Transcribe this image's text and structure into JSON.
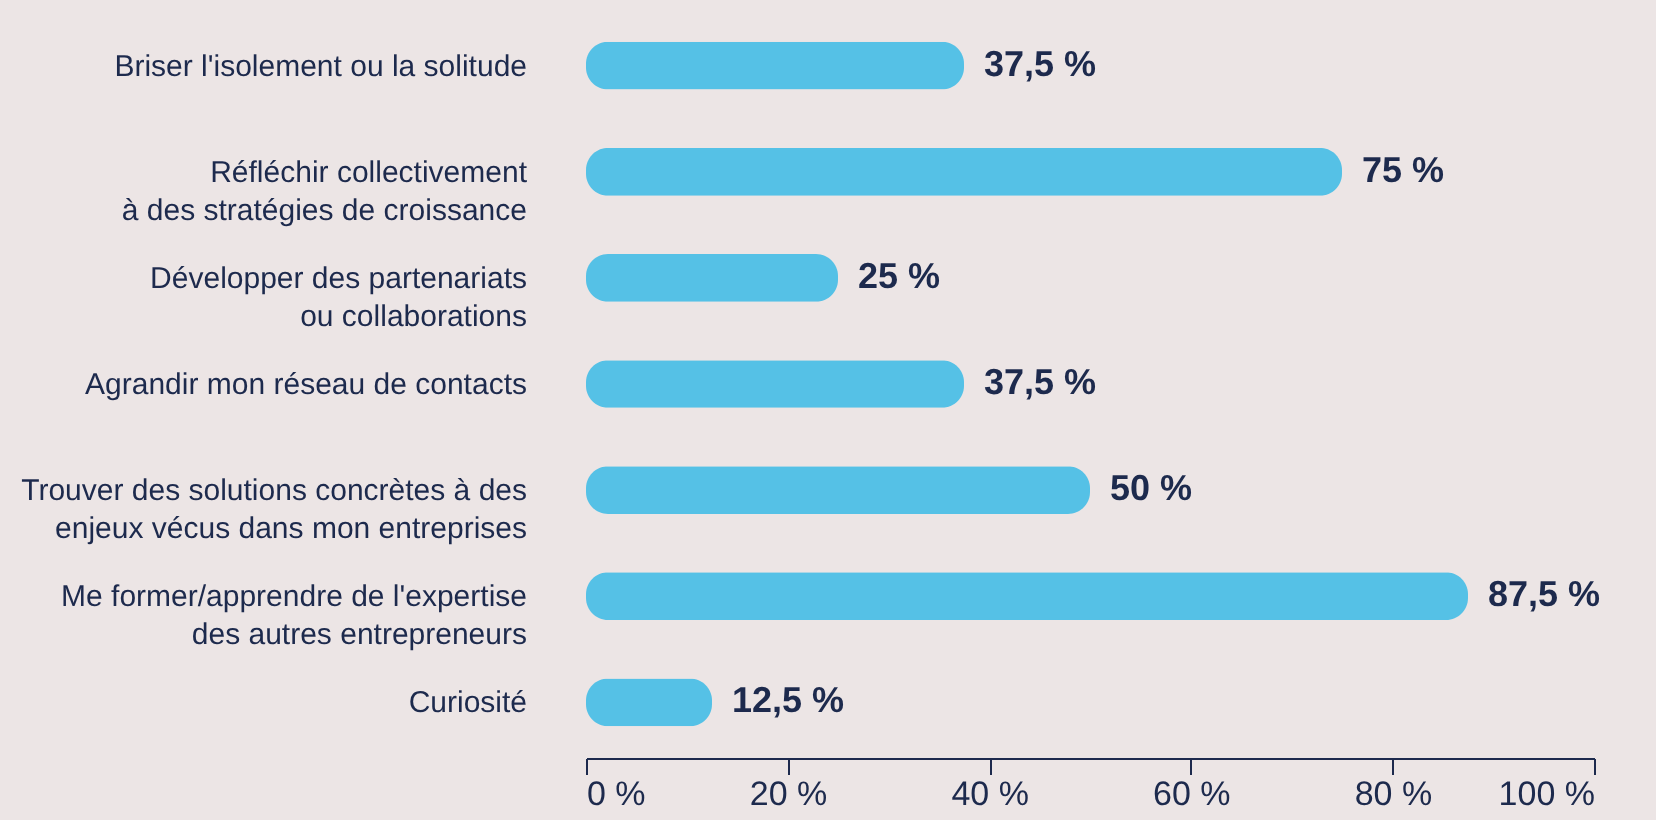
{
  "chart_data": {
    "type": "bar",
    "orientation": "horizontal",
    "categories": [
      "Briser l'isolement ou la solitude",
      "Réfléchir collectivement\nà des stratégies de croissance",
      "Développer des partenariats\nou collaborations",
      "Agrandir mon réseau de contacts",
      "Trouver des solutions concrètes à des\nenjeux vécus dans mon entreprises",
      "Me former/apprendre de l'expertise\ndes autres entrepreneurs",
      "Curiosité"
    ],
    "values": [
      37.5,
      75,
      25,
      37.5,
      50,
      87.5,
      12.5
    ],
    "value_labels": [
      "37,5 %",
      "75 %",
      "25 %",
      "37,5 %",
      "50 %",
      "87,5 %",
      "12,5 %"
    ],
    "color": "#55c1e6",
    "xlim": [
      0,
      100
    ],
    "xticks": [
      {
        "value": 0,
        "label": "0 %"
      },
      {
        "value": 20,
        "label": "20 %"
      },
      {
        "value": 40,
        "label": "40 %"
      },
      {
        "value": 60,
        "label": "60 %"
      },
      {
        "value": 80,
        "label": "80 %"
      },
      {
        "value": 100,
        "label": "100 %"
      }
    ],
    "grid": false
  }
}
